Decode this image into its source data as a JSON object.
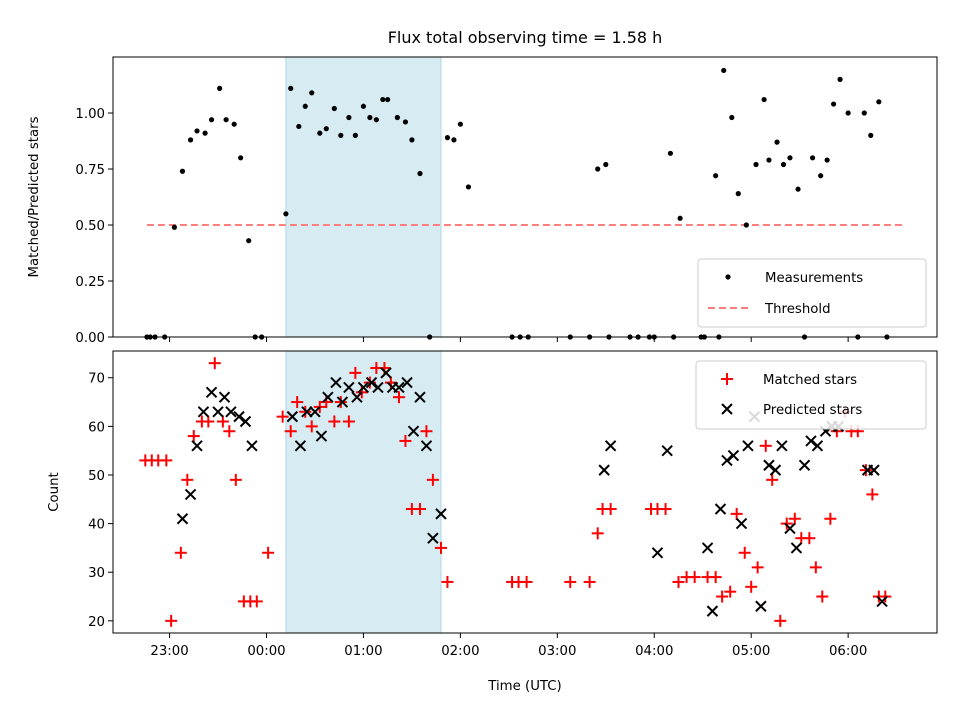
{
  "chart_data": [
    {
      "type": "scatter",
      "title": "Flux total observing time = 1.58 h",
      "xlabel": "",
      "ylabel": "Matched/Predicted stars",
      "xlim": [
        "22:25",
        "06:55"
      ],
      "ylim": [
        0,
        1.25
      ],
      "yticks": [
        "0.00",
        "0.25",
        "0.50",
        "0.75",
        "1.00"
      ],
      "shaded_interval": [
        "00:12",
        "01:48"
      ],
      "shaded_color": "#add8e6",
      "threshold": {
        "y": 0.5,
        "x_start": "22:46",
        "x_end": "06:34",
        "color": "#ff7f7f"
      },
      "legend": {
        "position": "lower right",
        "entries": [
          "Measurements",
          "Threshold"
        ]
      },
      "series": [
        {
          "name": "Measurements",
          "color": "#000000",
          "points": [
            [
              "22:46",
              0
            ],
            [
              "22:48",
              0
            ],
            [
              "22:51",
              0
            ],
            [
              "22:57",
              0
            ],
            [
              "23:03",
              0.49
            ],
            [
              "23:08",
              0.74
            ],
            [
              "23:13",
              0.88
            ],
            [
              "23:17",
              0.92
            ],
            [
              "23:22",
              0.91
            ],
            [
              "23:26",
              0.97
            ],
            [
              "23:31",
              1.11
            ],
            [
              "23:35",
              0.97
            ],
            [
              "23:40",
              0.95
            ],
            [
              "23:44",
              0.8
            ],
            [
              "23:49",
              0.43
            ],
            [
              "23:53",
              0
            ],
            [
              "23:57",
              0
            ],
            [
              "00:12",
              0.55
            ],
            [
              "00:15",
              1.11
            ],
            [
              "00:20",
              0.94
            ],
            [
              "00:24",
              1.03
            ],
            [
              "00:28",
              1.09
            ],
            [
              "00:33",
              0.91
            ],
            [
              "00:37",
              0.93
            ],
            [
              "00:42",
              1.02
            ],
            [
              "00:46",
              0.9
            ],
            [
              "00:51",
              0.98
            ],
            [
              "00:55",
              0.9
            ],
            [
              "01:00",
              1.03
            ],
            [
              "01:04",
              0.98
            ],
            [
              "01:08",
              0.97
            ],
            [
              "01:12",
              1.06
            ],
            [
              "01:15",
              1.06
            ],
            [
              "01:21",
              0.98
            ],
            [
              "01:26",
              0.96
            ],
            [
              "01:30",
              0.88
            ],
            [
              "01:35",
              0.73
            ],
            [
              "01:41",
              0
            ],
            [
              "01:52",
              0.89
            ],
            [
              "01:56",
              0.88
            ],
            [
              "02:00",
              0.95
            ],
            [
              "02:05",
              0.67
            ],
            [
              "02:32",
              0
            ],
            [
              "02:37",
              0
            ],
            [
              "02:42",
              0
            ],
            [
              "03:08",
              0
            ],
            [
              "03:20",
              0
            ],
            [
              "03:25",
              0.75
            ],
            [
              "03:30",
              0.77
            ],
            [
              "03:32",
              0
            ],
            [
              "03:45",
              0
            ],
            [
              "03:50",
              0
            ],
            [
              "03:57",
              0
            ],
            [
              "04:00",
              0
            ],
            [
              "04:10",
              0.82
            ],
            [
              "04:12",
              0
            ],
            [
              "04:16",
              0.53
            ],
            [
              "04:29",
              0
            ],
            [
              "04:31",
              0
            ],
            [
              "04:38",
              0.72
            ],
            [
              "04:40",
              0
            ],
            [
              "04:43",
              1.19
            ],
            [
              "04:48",
              0.98
            ],
            [
              "04:52",
              0.64
            ],
            [
              "04:57",
              0.5
            ],
            [
              "05:03",
              0.77
            ],
            [
              "05:08",
              1.06
            ],
            [
              "05:11",
              0.79
            ],
            [
              "05:16",
              0.87
            ],
            [
              "05:20",
              0.77
            ],
            [
              "05:24",
              0.8
            ],
            [
              "05:29",
              0.66
            ],
            [
              "05:33",
              0
            ],
            [
              "05:38",
              0.8
            ],
            [
              "05:43",
              0.72
            ],
            [
              "05:47",
              0.79
            ],
            [
              "05:51",
              1.04
            ],
            [
              "05:55",
              1.15
            ],
            [
              "06:00",
              1.0
            ],
            [
              "06:06",
              0
            ],
            [
              "06:10",
              1.0
            ],
            [
              "06:14",
              0.9
            ],
            [
              "06:19",
              1.05
            ],
            [
              "06:24",
              0
            ]
          ]
        }
      ]
    },
    {
      "type": "scatter",
      "title": "",
      "xlabel": "Time (UTC)",
      "ylabel": "Count",
      "xlim": [
        "22:25",
        "06:55"
      ],
      "ylim": [
        17.5,
        75.5
      ],
      "yticks": [
        "20",
        "30",
        "40",
        "50",
        "60",
        "70"
      ],
      "xticks": [
        "23:00",
        "00:00",
        "01:00",
        "02:00",
        "03:00",
        "04:00",
        "05:00",
        "06:00"
      ],
      "shaded_interval": [
        "00:12",
        "01:48"
      ],
      "shaded_color": "#add8e6",
      "legend": {
        "position": "upper right",
        "entries": [
          "Matched stars",
          "Predicted stars"
        ]
      },
      "series": [
        {
          "name": "Matched stars",
          "marker": "+",
          "color": "#ff0000",
          "points": [
            [
              "22:45",
              53
            ],
            [
              "22:49",
              53
            ],
            [
              "22:53",
              53
            ],
            [
              "22:58",
              53
            ],
            [
              "23:01",
              20
            ],
            [
              "23:07",
              34
            ],
            [
              "23:11",
              49
            ],
            [
              "23:15",
              58
            ],
            [
              "23:20",
              61
            ],
            [
              "23:24",
              61
            ],
            [
              "23:28",
              73
            ],
            [
              "23:33",
              61
            ],
            [
              "23:37",
              59
            ],
            [
              "23:41",
              49
            ],
            [
              "23:46",
              24
            ],
            [
              "23:50",
              24
            ],
            [
              "23:54",
              24
            ],
            [
              "00:01",
              34
            ],
            [
              "00:10",
              62
            ],
            [
              "00:15",
              59
            ],
            [
              "00:19",
              65
            ],
            [
              "00:24",
              63
            ],
            [
              "00:28",
              60
            ],
            [
              "00:33",
              64
            ],
            [
              "00:37",
              65
            ],
            [
              "00:42",
              61
            ],
            [
              "00:46",
              65
            ],
            [
              "00:51",
              61
            ],
            [
              "00:55",
              71
            ],
            [
              "00:59",
              67
            ],
            [
              "01:04",
              69
            ],
            [
              "01:08",
              72
            ],
            [
              "01:13",
              72
            ],
            [
              "01:17",
              69
            ],
            [
              "01:22",
              66
            ],
            [
              "01:26",
              57
            ],
            [
              "01:30",
              43
            ],
            [
              "01:35",
              43
            ],
            [
              "01:39",
              59
            ],
            [
              "01:43",
              49
            ],
            [
              "01:48",
              35
            ],
            [
              "01:52",
              28
            ],
            [
              "02:32",
              28
            ],
            [
              "02:36",
              28
            ],
            [
              "02:41",
              28
            ],
            [
              "03:08",
              28
            ],
            [
              "03:20",
              28
            ],
            [
              "03:25",
              38
            ],
            [
              "03:28",
              43
            ],
            [
              "03:33",
              43
            ],
            [
              "03:58",
              43
            ],
            [
              "04:02",
              43
            ],
            [
              "04:07",
              43
            ],
            [
              "04:15",
              28
            ],
            [
              "04:20",
              29
            ],
            [
              "04:25",
              29
            ],
            [
              "04:33",
              29
            ],
            [
              "04:38",
              29
            ],
            [
              "04:42",
              25
            ],
            [
              "04:47",
              26
            ],
            [
              "04:51",
              42
            ],
            [
              "04:56",
              34
            ],
            [
              "05:00",
              27
            ],
            [
              "05:04",
              31
            ],
            [
              "05:09",
              56
            ],
            [
              "05:13",
              49
            ],
            [
              "05:18",
              20
            ],
            [
              "05:22",
              40
            ],
            [
              "05:27",
              41
            ],
            [
              "05:31",
              37
            ],
            [
              "05:36",
              37
            ],
            [
              "05:40",
              31
            ],
            [
              "05:44",
              25
            ],
            [
              "05:49",
              41
            ],
            [
              "05:53",
              59
            ],
            [
              "05:58",
              63
            ],
            [
              "06:02",
              59
            ],
            [
              "06:06",
              59
            ],
            [
              "06:11",
              51
            ],
            [
              "06:15",
              46
            ],
            [
              "06:19",
              25
            ],
            [
              "06:23",
              25
            ]
          ]
        },
        {
          "name": "Predicted stars",
          "marker": "x",
          "color": "#000000",
          "points": [
            [
              "23:08",
              41
            ],
            [
              "23:13",
              46
            ],
            [
              "23:17",
              56
            ],
            [
              "23:21",
              63
            ],
            [
              "23:26",
              67
            ],
            [
              "23:30",
              63
            ],
            [
              "23:34",
              66
            ],
            [
              "23:38",
              63
            ],
            [
              "23:43",
              62
            ],
            [
              "23:47",
              61
            ],
            [
              "23:51",
              56
            ],
            [
              "00:16",
              62
            ],
            [
              "00:21",
              56
            ],
            [
              "00:25",
              63
            ],
            [
              "00:30",
              63
            ],
            [
              "00:34",
              58
            ],
            [
              "00:38",
              66
            ],
            [
              "00:43",
              69
            ],
            [
              "00:47",
              65
            ],
            [
              "00:51",
              68
            ],
            [
              "00:56",
              66
            ],
            [
              "01:00",
              68
            ],
            [
              "01:05",
              69
            ],
            [
              "01:09",
              68
            ],
            [
              "01:14",
              71
            ],
            [
              "01:18",
              68
            ],
            [
              "01:22",
              68
            ],
            [
              "01:27",
              69
            ],
            [
              "01:31",
              59
            ],
            [
              "01:35",
              66
            ],
            [
              "01:39",
              56
            ],
            [
              "01:43",
              37
            ],
            [
              "01:48",
              42
            ],
            [
              "03:29",
              51
            ],
            [
              "03:33",
              56
            ],
            [
              "04:02",
              34
            ],
            [
              "04:08",
              55
            ],
            [
              "04:33",
              35
            ],
            [
              "04:36",
              22
            ],
            [
              "04:41",
              43
            ],
            [
              "04:45",
              53
            ],
            [
              "04:49",
              54
            ],
            [
              "04:54",
              40
            ],
            [
              "04:58",
              56
            ],
            [
              "05:02",
              62
            ],
            [
              "05:06",
              23
            ],
            [
              "05:11",
              52
            ],
            [
              "05:15",
              51
            ],
            [
              "05:19",
              56
            ],
            [
              "05:24",
              39
            ],
            [
              "05:28",
              35
            ],
            [
              "05:33",
              52
            ],
            [
              "05:37",
              57
            ],
            [
              "05:41",
              56
            ],
            [
              "05:46",
              59
            ],
            [
              "05:50",
              60
            ],
            [
              "05:54",
              60
            ],
            [
              "06:12",
              51
            ],
            [
              "06:16",
              51
            ],
            [
              "06:21",
              24
            ]
          ]
        }
      ]
    }
  ]
}
